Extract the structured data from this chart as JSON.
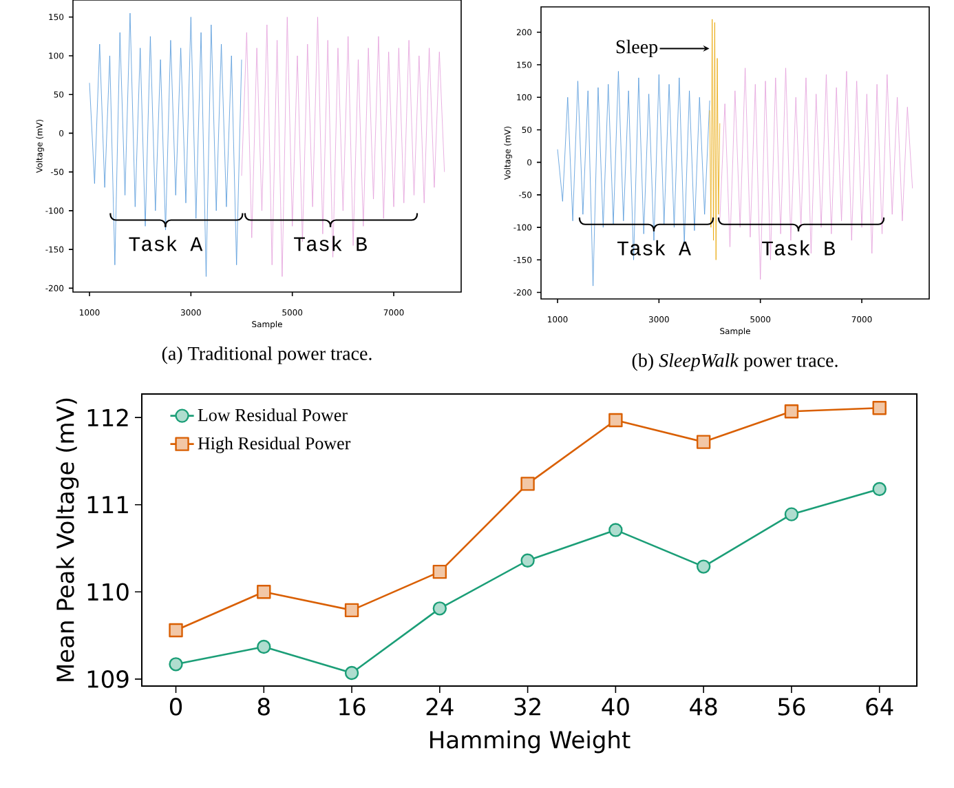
{
  "chart_data": [
    {
      "type": "line",
      "xlabel": "Sample",
      "ylabel": "Voltage (mV)",
      "xlim": [
        674,
        8330
      ],
      "ylim": [
        -205,
        172
      ],
      "xticks": [
        1000,
        3000,
        5000,
        7000
      ],
      "yticks": [
        -200,
        -150,
        -100,
        -50,
        0,
        50,
        100,
        150
      ],
      "grid": false,
      "legend": false,
      "annotations": [
        "(a) Traditional power trace.",
        {
          "text": "Task A",
          "x": 2498,
          "y": -121
        },
        {
          "text": "Task B",
          "x": 5751,
          "y": -121
        }
      ],
      "series": [
        {
          "color": "#4f96d9",
          "x": [
            1000,
            1100,
            1200,
            1300,
            1400,
            1500,
            1600,
            1700,
            1800,
            1900,
            2000,
            2100,
            2200,
            2300,
            2400,
            2500,
            2600,
            2700,
            2800,
            2900,
            3000,
            3100,
            3200,
            3300,
            3400,
            3500,
            3600,
            3700,
            3800,
            3900,
            4000
          ],
          "values": [
            65,
            -65,
            115,
            -70,
            100,
            -170,
            130,
            -80,
            155,
            -95,
            110,
            -120,
            125,
            -100,
            95,
            -125,
            120,
            -80,
            110,
            -90,
            150,
            -110,
            130,
            -185,
            140,
            -100,
            115,
            -95,
            100,
            -170,
            95
          ]
        },
        {
          "color": "#e39ddb",
          "x": [
            4000,
            4100,
            4200,
            4300,
            4400,
            4500,
            4600,
            4700,
            4800,
            4900,
            5000,
            5100,
            5200,
            5300,
            5400,
            5500,
            5600,
            5700,
            5800,
            5900,
            6000,
            6100,
            6200,
            6300,
            6400,
            6500,
            6600,
            6700,
            6800,
            6900,
            7000,
            7100,
            7200,
            7300,
            7400,
            7500,
            7600,
            7700,
            7800,
            7900,
            8000
          ],
          "values": [
            -55,
            130,
            -135,
            110,
            -100,
            140,
            -170,
            120,
            -185,
            150,
            -120,
            100,
            -140,
            115,
            -95,
            150,
            -130,
            120,
            -160,
            110,
            -100,
            125,
            -145,
            95,
            -120,
            110,
            -85,
            125,
            -110,
            105,
            -95,
            110,
            -90,
            120,
            -80,
            100,
            -90,
            110,
            -70,
            105,
            -50
          ]
        }
      ]
    },
    {
      "type": "line",
      "xlabel": "Sample",
      "ylabel": "Voltage (mV)",
      "xlim": [
        674,
        8330
      ],
      "ylim": [
        -210,
        239
      ],
      "xticks": [
        1000,
        3000,
        5000,
        7000
      ],
      "yticks": [
        -200,
        -150,
        -100,
        -50,
        0,
        50,
        100,
        150,
        200
      ],
      "grid": false,
      "legend": false,
      "annotations": [
        "(b) *SleepWalk* power trace.",
        {
          "text": "Task A",
          "x": 2900,
          "y": -106
        },
        {
          "text": "Task B",
          "x": 5751,
          "y": -106
        },
        {
          "text": "Sleep",
          "x": 4048,
          "y": 175
        }
      ],
      "series": [
        {
          "color": "#4f96d9",
          "x": [
            1000,
            1100,
            1200,
            1300,
            1400,
            1500,
            1600,
            1700,
            1800,
            1900,
            2000,
            2100,
            2200,
            2300,
            2400,
            2500,
            2600,
            2700,
            2800,
            2900,
            3000,
            3100,
            3200,
            3300,
            3400,
            3500,
            3600,
            3700,
            3800,
            3900,
            4000
          ],
          "values": [
            20,
            -60,
            100,
            -90,
            125,
            -80,
            110,
            -190,
            115,
            -100,
            120,
            -95,
            140,
            -90,
            110,
            -150,
            130,
            -110,
            105,
            -120,
            135,
            -95,
            120,
            -100,
            130,
            -125,
            110,
            -105,
            100,
            -80,
            95
          ]
        },
        {
          "color": "#e8a500",
          "x": [
            4000,
            4025,
            4050,
            4075,
            4100,
            4125,
            4150,
            4175,
            4200
          ],
          "values": [
            80,
            -100,
            220,
            -120,
            215,
            -150,
            160,
            -80,
            60
          ]
        },
        {
          "color": "#e39ddb",
          "x": [
            4200,
            4300,
            4400,
            4500,
            4600,
            4700,
            4800,
            4900,
            5000,
            5100,
            5200,
            5300,
            5400,
            5500,
            5600,
            5700,
            5800,
            5900,
            6000,
            6100,
            6200,
            6300,
            6400,
            6500,
            6600,
            6700,
            6800,
            6900,
            7000,
            7100,
            7200,
            7300,
            7400,
            7500,
            7600,
            7700,
            7800,
            7900,
            8000
          ],
          "values": [
            -90,
            90,
            -130,
            110,
            -100,
            145,
            -115,
            120,
            -180,
            125,
            -150,
            130,
            -110,
            145,
            -120,
            100,
            -100,
            130,
            -140,
            105,
            -100,
            135,
            -110,
            115,
            -90,
            140,
            -120,
            125,
            -100,
            105,
            -140,
            120,
            -110,
            135,
            -80,
            100,
            -90,
            85,
            -40
          ]
        }
      ]
    },
    {
      "type": "line",
      "xlabel": "Hamming Weight",
      "ylabel": "Mean Peak Voltage (mV)",
      "xlim": [
        -3.1,
        67.4
      ],
      "ylim": [
        108.92,
        112.27
      ],
      "xticks": [
        0,
        8,
        16,
        24,
        32,
        40,
        48,
        56,
        64
      ],
      "yticks": [
        109,
        110,
        111,
        112
      ],
      "grid": false,
      "legend": "top left",
      "series": [
        {
          "name": "Low Residual Power",
          "color": "#1b9e77",
          "marker": "circle",
          "x": [
            0,
            8,
            16,
            24,
            32,
            40,
            48,
            56,
            64
          ],
          "values": [
            109.17,
            109.37,
            109.07,
            109.81,
            110.36,
            110.71,
            110.29,
            110.89,
            111.18
          ]
        },
        {
          "name": "High Residual Power",
          "color": "#d95f02",
          "marker": "square",
          "x": [
            0,
            8,
            16,
            24,
            32,
            40,
            48,
            56,
            64
          ],
          "values": [
            109.56,
            110.0,
            109.79,
            110.23,
            111.24,
            111.97,
            111.72,
            112.07,
            112.11
          ]
        }
      ]
    }
  ]
}
